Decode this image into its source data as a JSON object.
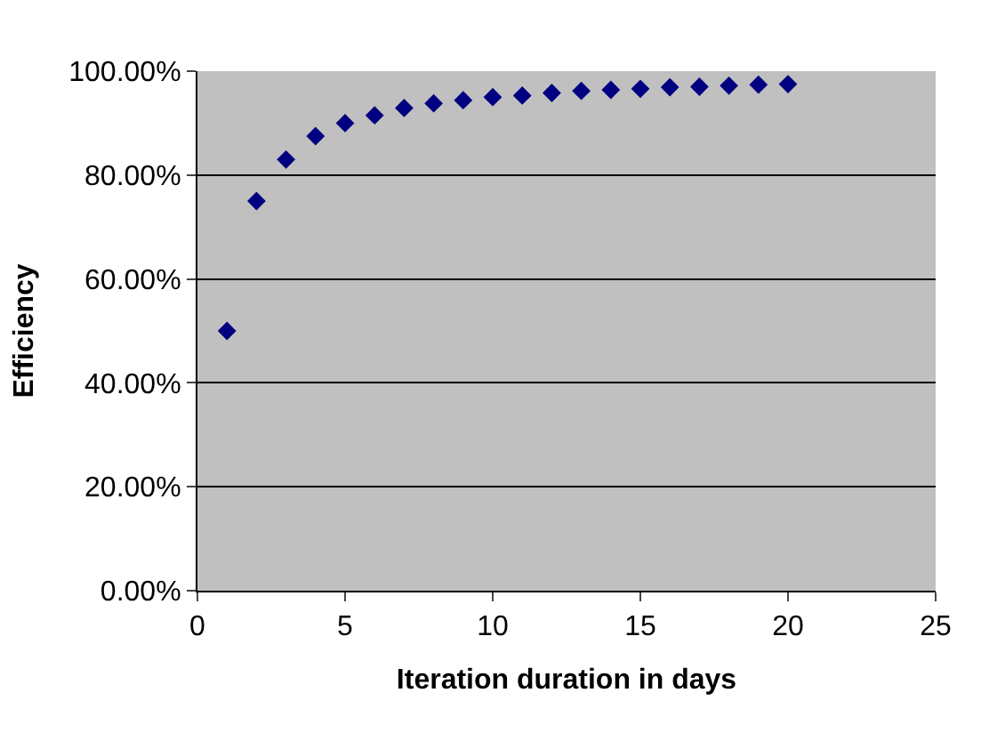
{
  "chart_data": {
    "type": "scatter",
    "xlabel": "Iteration duration in days",
    "ylabel": "Efficiency",
    "x": [
      1,
      2,
      3,
      4,
      5,
      6,
      7,
      8,
      9,
      10,
      11,
      12,
      13,
      14,
      15,
      16,
      17,
      18,
      19,
      20
    ],
    "series": [
      {
        "color": "#000080",
        "values": [
          50,
          75,
          83,
          87.5,
          90,
          91.5,
          92.9,
          93.8,
          94.4,
          95,
          95.3,
          95.8,
          96.2,
          96.4,
          96.6,
          96.9,
          97,
          97.2,
          97.4,
          97.5
        ]
      }
    ],
    "xlim": [
      0,
      25
    ],
    "xticks": [
      0,
      5,
      10,
      15,
      20,
      25
    ],
    "ylim": [
      0,
      100
    ],
    "yticks": [
      {
        "value": 0,
        "label": "0.00%"
      },
      {
        "value": 20,
        "label": "20.00%"
      },
      {
        "value": 40,
        "label": "40.00%"
      },
      {
        "value": 60,
        "label": "60.00%"
      },
      {
        "value": 80,
        "label": "80.00%"
      },
      {
        "value": 100,
        "label": "100.00%"
      }
    ],
    "grid": "y",
    "marker": "diamond",
    "legend": false
  }
}
